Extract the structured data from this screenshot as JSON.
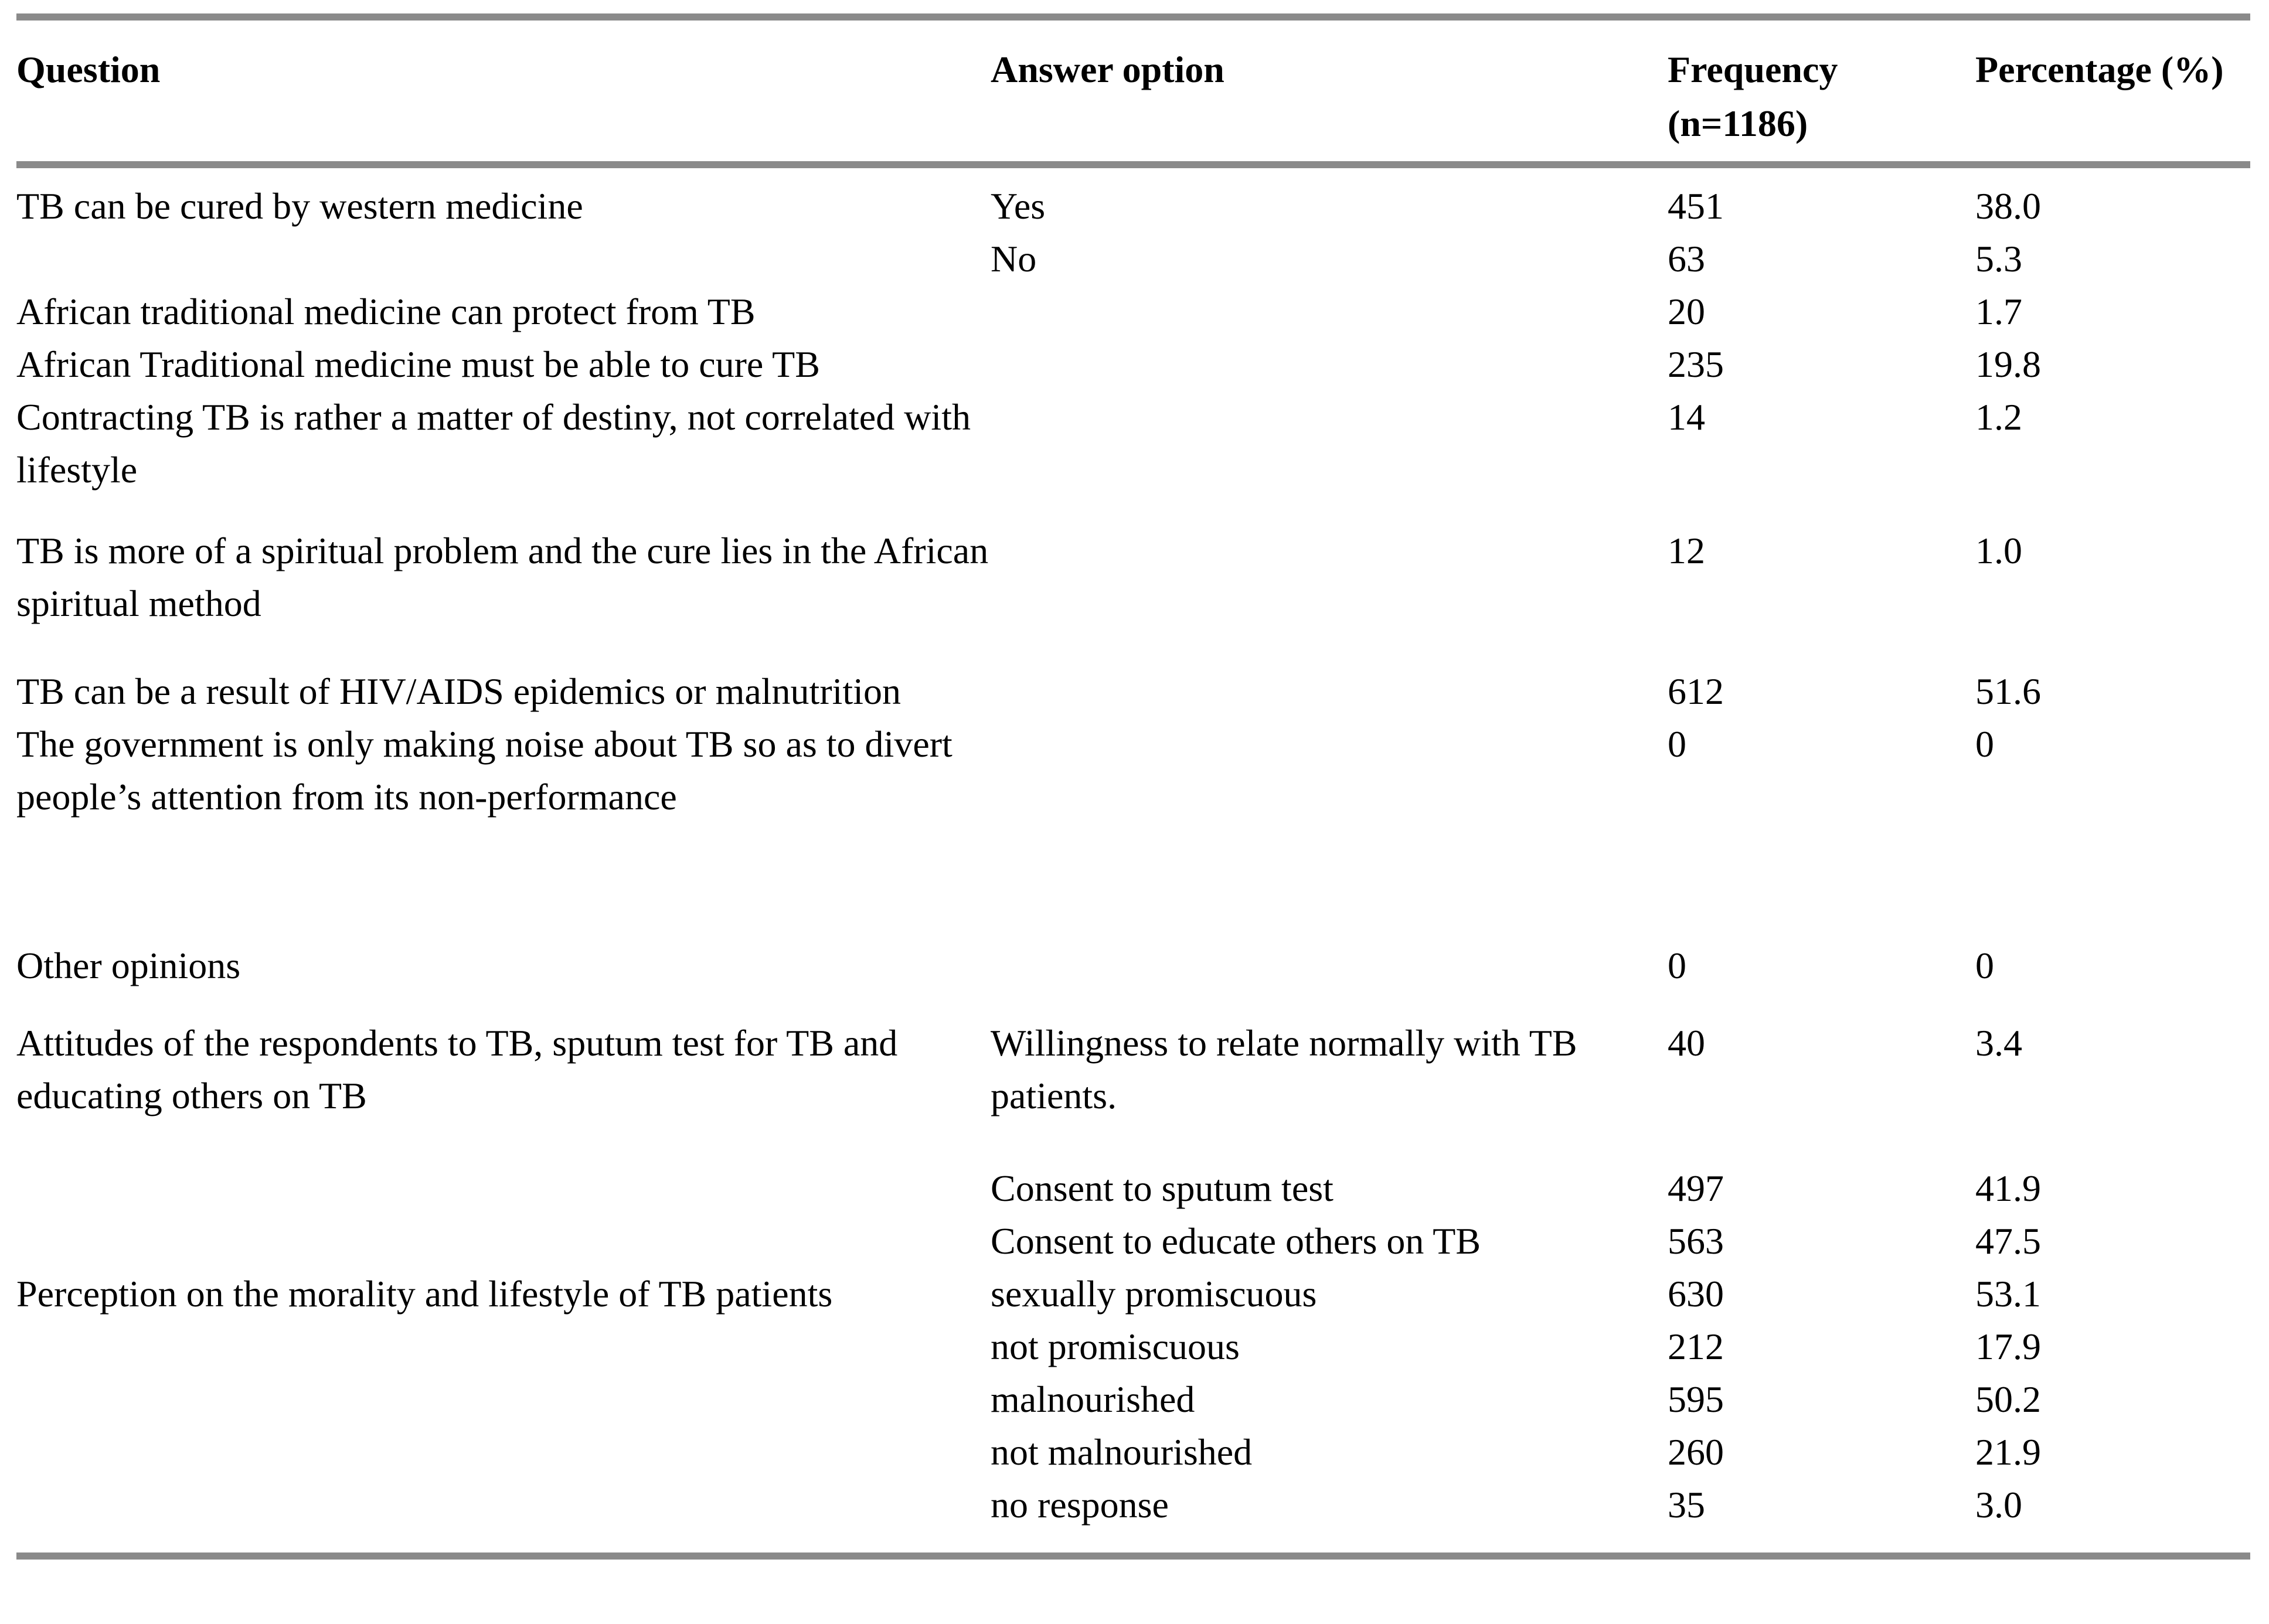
{
  "colors": {
    "rule_gray": "#8a8a8a",
    "text": "#000000",
    "background": "#ffffff"
  },
  "table": {
    "header": {
      "question": "Question",
      "answer_option": "Answer option",
      "frequency_line1": "Frequency",
      "frequency_line2": "(n=1186)",
      "percentage": "Percentage (%)"
    },
    "rows": [
      {
        "question": "TB can be cured by western medicine",
        "answer": "Yes",
        "frequency": "451",
        "percentage": "38.0"
      },
      {
        "question": "",
        "answer": "No",
        "frequency": "63",
        "percentage": "5.3"
      },
      {
        "question": "African traditional medicine can protect from TB",
        "answer": "",
        "frequency": "20",
        "percentage": "1.7"
      },
      {
        "question": "African Traditional medicine must be able to cure TB",
        "answer": "",
        "frequency": "235",
        "percentage": "19.8"
      },
      {
        "question": "Contracting TB is rather a matter of destiny, not correlated with lifestyle",
        "answer": "",
        "frequency": "14",
        "percentage": "1.2"
      },
      {
        "question": "TB is more of a spiritual problem and the cure lies in the African spiritual method",
        "answer": "",
        "frequency": "12",
        "percentage": "1.0"
      },
      {
        "question": "TB can be a result of HIV/AIDS epidemics or malnutrition",
        "answer": "",
        "frequency": "612",
        "percentage": "51.6"
      },
      {
        "question": "The government is only making noise about TB so as to divert people’s attention from its non-performance",
        "answer": "",
        "frequency": "0",
        "percentage": "0"
      },
      {
        "question": "Other opinions",
        "answer": "",
        "frequency": "0",
        "percentage": "0"
      },
      {
        "question": "Attitudes of the respondents to TB, sputum test for TB and educating others on TB",
        "answer": "Willingness to relate normally with TB patients.",
        "frequency": "40",
        "percentage": "3.4"
      },
      {
        "question": "",
        "answer": "Consent to sputum test",
        "frequency": "497",
        "percentage": "41.9"
      },
      {
        "question": "",
        "answer": "Consent to educate others on TB",
        "frequency": "563",
        "percentage": "47.5"
      },
      {
        "question": "Perception on the morality and lifestyle of TB patients",
        "answer": "sexually promiscuous",
        "frequency": "630",
        "percentage": "53.1"
      },
      {
        "question": "",
        "answer": "not promiscuous",
        "frequency": "212",
        "percentage": "17.9"
      },
      {
        "question": "",
        "answer": "malnourished",
        "frequency": "595",
        "percentage": "50.2"
      },
      {
        "question": "",
        "answer": "not malnourished",
        "frequency": "260",
        "percentage": "21.9"
      },
      {
        "question": "",
        "answer": "no response",
        "frequency": "35",
        "percentage": "3.0"
      }
    ]
  }
}
